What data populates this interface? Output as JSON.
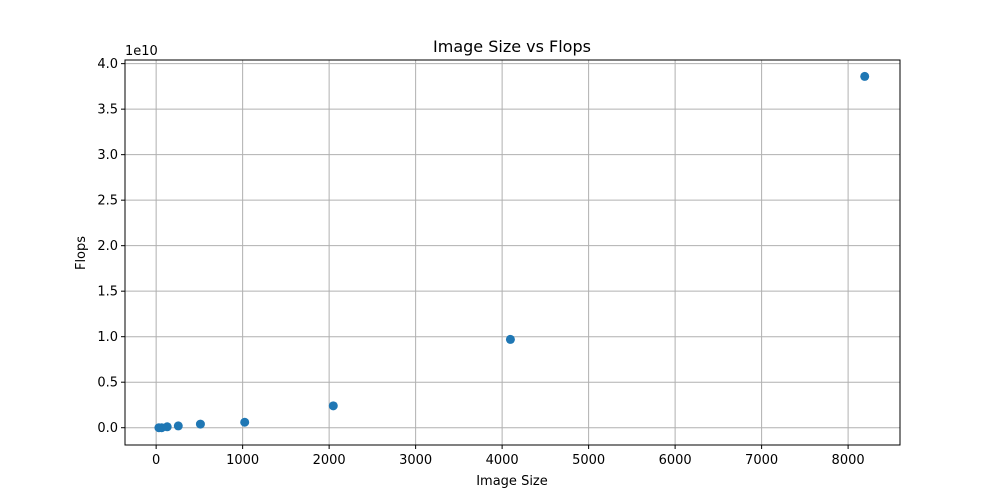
{
  "chart_data": {
    "type": "scatter",
    "title": "Image Size vs Flops",
    "xlabel": "Image Size",
    "ylabel": "Flops",
    "y_offset_text": "1e10",
    "y_scale": 10000000000,
    "xlim": [
      -360,
      8600
    ],
    "ylim": [
      -0.19,
      4.04
    ],
    "x_ticks": [
      0,
      1000,
      2000,
      3000,
      4000,
      5000,
      6000,
      7000,
      8000
    ],
    "x_tick_labels": [
      "0",
      "1000",
      "2000",
      "3000",
      "4000",
      "5000",
      "6000",
      "7000",
      "8000"
    ],
    "y_ticks": [
      0.0,
      0.5,
      1.0,
      1.5,
      2.0,
      2.5,
      3.0,
      3.5,
      4.0
    ],
    "y_tick_labels": [
      "0.0",
      "0.5",
      "1.0",
      "1.5",
      "2.0",
      "2.5",
      "3.0",
      "3.5",
      "4.0"
    ],
    "grid": true,
    "color": "#1f77b4",
    "points": [
      {
        "x": 32,
        "y": 0.0
      },
      {
        "x": 64,
        "y": 0.0
      },
      {
        "x": 128,
        "y": 0.01
      },
      {
        "x": 256,
        "y": 0.02
      },
      {
        "x": 512,
        "y": 0.04
      },
      {
        "x": 1024,
        "y": 0.06
      },
      {
        "x": 2048,
        "y": 0.24
      },
      {
        "x": 4096,
        "y": 0.97
      },
      {
        "x": 8192,
        "y": 3.86
      }
    ]
  }
}
